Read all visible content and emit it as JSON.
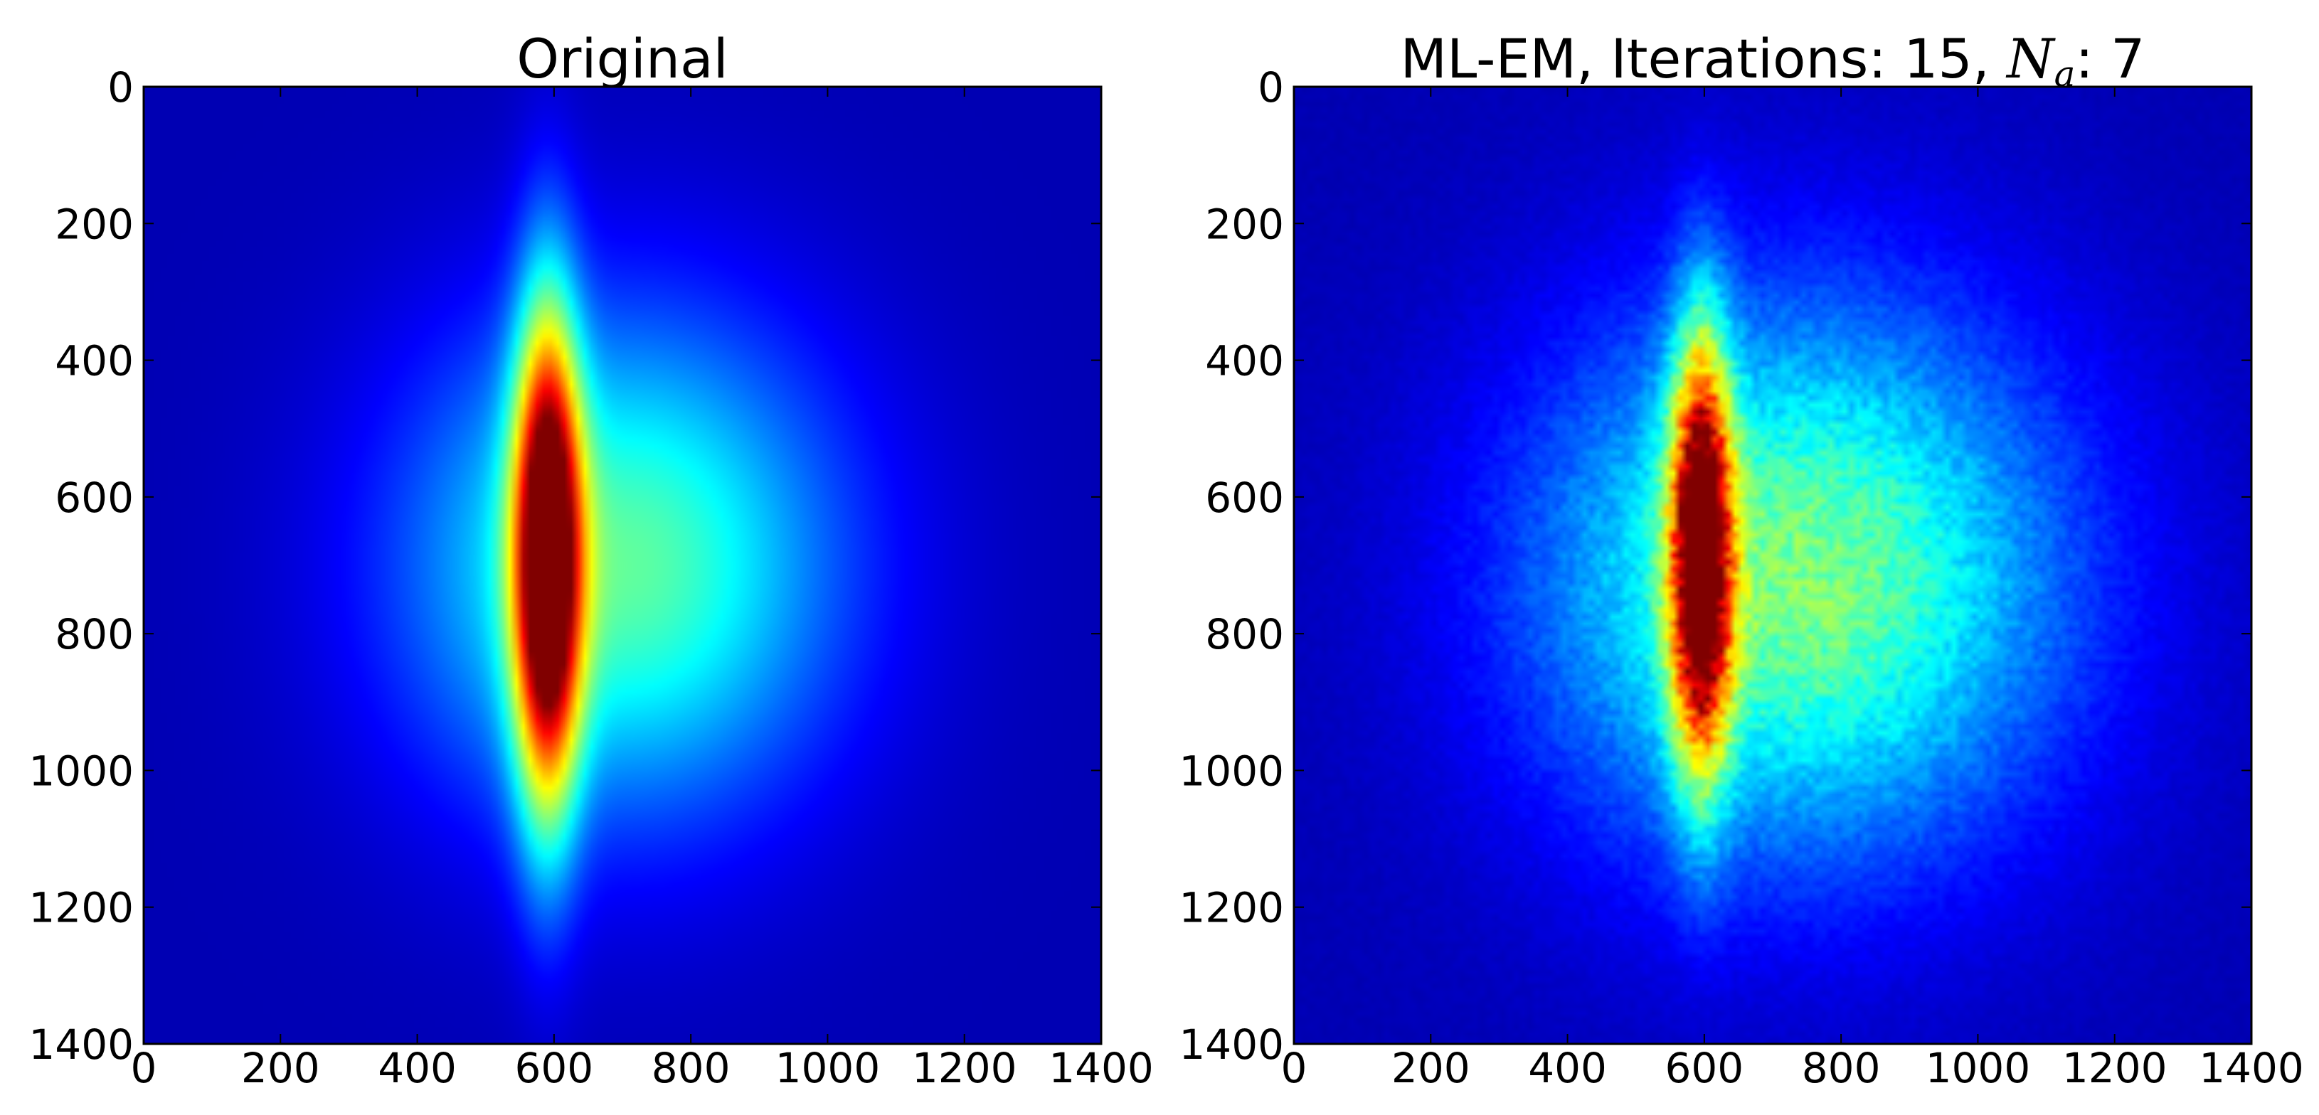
{
  "chart_data": [
    {
      "type": "heatmap",
      "title": "Original",
      "colormap": "jet",
      "xlim": [
        0,
        1400
      ],
      "ylim": [
        1400,
        0
      ],
      "x_ticks": [
        0,
        200,
        400,
        600,
        800,
        1000,
        1200,
        1400
      ],
      "y_ticks": [
        0,
        200,
        400,
        600,
        800,
        1000,
        1200,
        1400
      ],
      "x_tick_labels": [
        "0",
        "200",
        "400",
        "600",
        "800",
        "1000",
        "1200",
        "1400"
      ],
      "y_tick_labels": [
        "0",
        "200",
        "400",
        "600",
        "800",
        "1000",
        "1200",
        "1400"
      ],
      "xlabel": "",
      "ylabel": "",
      "grid": false,
      "background_value": 0.05,
      "features": [
        {
          "shape": "narrow-ellipse",
          "center": [
            590,
            690
          ],
          "radius": [
            50,
            380
          ],
          "peak": 0.97
        },
        {
          "shape": "broad-blob",
          "center": [
            700,
            700
          ],
          "radius": [
            330,
            380
          ],
          "peak": 0.42
        }
      ]
    },
    {
      "type": "heatmap",
      "title_text": "ML-EM, Iterations: 15, ",
      "title_symbol": "N",
      "title_subscript": "a",
      "title_suffix": ": 7",
      "colormap": "jet",
      "xlim": [
        0,
        1400
      ],
      "ylim": [
        1400,
        0
      ],
      "x_ticks": [
        0,
        200,
        400,
        600,
        800,
        1000,
        1200,
        1400
      ],
      "y_ticks": [
        0,
        200,
        400,
        600,
        800,
        1000,
        1200,
        1400
      ],
      "x_tick_labels": [
        "0",
        "200",
        "400",
        "600",
        "800",
        "1000",
        "1200",
        "1400"
      ],
      "y_tick_labels": [
        "0",
        "200",
        "400",
        "600",
        "800",
        "1000",
        "1200",
        "1400"
      ],
      "xlabel": "",
      "ylabel": "",
      "grid": false,
      "background_value": 0.05,
      "noisy": true,
      "features": [
        {
          "shape": "narrow-ellipse",
          "center": [
            595,
            680
          ],
          "radius": [
            45,
            320
          ],
          "peak": 0.93
        },
        {
          "shape": "broad-blob",
          "center": [
            740,
            720
          ],
          "radius": [
            400,
            420
          ],
          "peak": 0.45
        }
      ]
    }
  ]
}
